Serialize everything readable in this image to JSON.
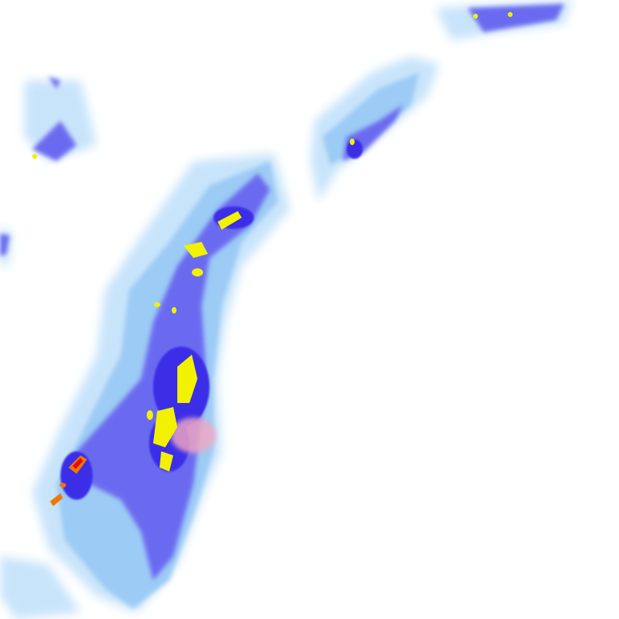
{
  "map": {
    "type": "precipitation-radar",
    "background": "#ffffff",
    "colors": {
      "very_light": "#c8e4fb",
      "light": "#9ccbf5",
      "moderate": "#6b6bf0",
      "heavy": "#3b2fe6",
      "very_heavy": "#f2f200",
      "intense": "#f07800",
      "extreme": "#e01010",
      "mixed_precip": "#f4a8c0"
    }
  }
}
